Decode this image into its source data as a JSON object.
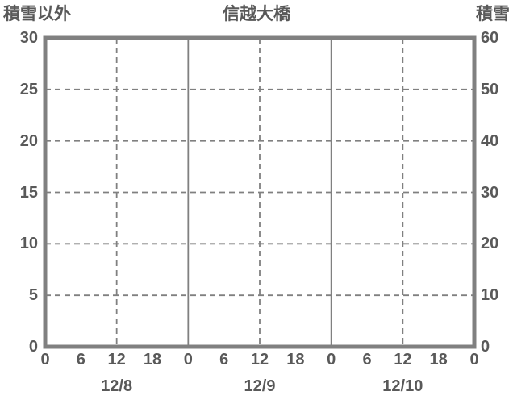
{
  "header": {
    "left_axis_title": "積雪以外",
    "chart_title": "信越大橋",
    "right_axis_title": "積雪"
  },
  "chart_data": {
    "type": "line",
    "title": "信越大橋",
    "series": [],
    "left_axis": {
      "label": "積雪以外",
      "min": 0,
      "max": 30,
      "tick_step": 5,
      "ticks": [
        30,
        25,
        20,
        15,
        10,
        5,
        0
      ]
    },
    "right_axis": {
      "label": "積雪",
      "min": 0,
      "max": 60,
      "tick_step": 10,
      "ticks": [
        60,
        50,
        40,
        30,
        20,
        10,
        0
      ]
    },
    "x_axis": {
      "range_hours": [
        0,
        72
      ],
      "tick_step_hours": 6,
      "hour_tick_labels": [
        "0",
        "6",
        "12",
        "18",
        "0",
        "6",
        "12",
        "18",
        "0",
        "6",
        "12",
        "18",
        "0"
      ],
      "day_labels": [
        "12/8",
        "12/9",
        "12/10"
      ]
    },
    "gridlines": {
      "horizontal_dashed_left_values": [
        5,
        10,
        15,
        20,
        25
      ],
      "vertical_dashed_hours": [
        12,
        36,
        60
      ],
      "vertical_solid_hours": [
        24,
        48
      ]
    },
    "colors": {
      "grid_line": "#808080",
      "border": "#808080",
      "text": "#595959",
      "background": "#ffffff"
    }
  }
}
